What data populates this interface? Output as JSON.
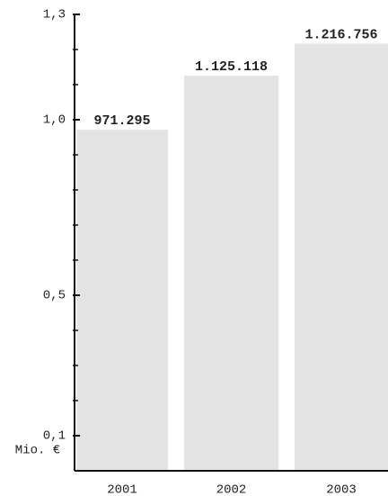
{
  "chart_data": {
    "type": "bar",
    "y_label": "Mio. €",
    "categories": [
      "2001",
      "2002",
      "2003"
    ],
    "values": [
      0.971295,
      1.125118,
      1.216756
    ],
    "value_labels": [
      "971.295",
      "1.125.118",
      "1.216.756"
    ],
    "color": "#e3e3e3",
    "ylim": [
      0,
      1.3
    ],
    "yticks": [
      {
        "value": 0.1,
        "label": "0,1"
      },
      {
        "value": 0.5,
        "label": "0,5"
      },
      {
        "value": 1.0,
        "label": "1,0"
      },
      {
        "value": 1.3,
        "label": "1,3"
      }
    ],
    "yminor_ticks": [
      0.2,
      0.3,
      0.4,
      0.6,
      0.7,
      0.8,
      0.9,
      1.1,
      1.2
    ]
  }
}
